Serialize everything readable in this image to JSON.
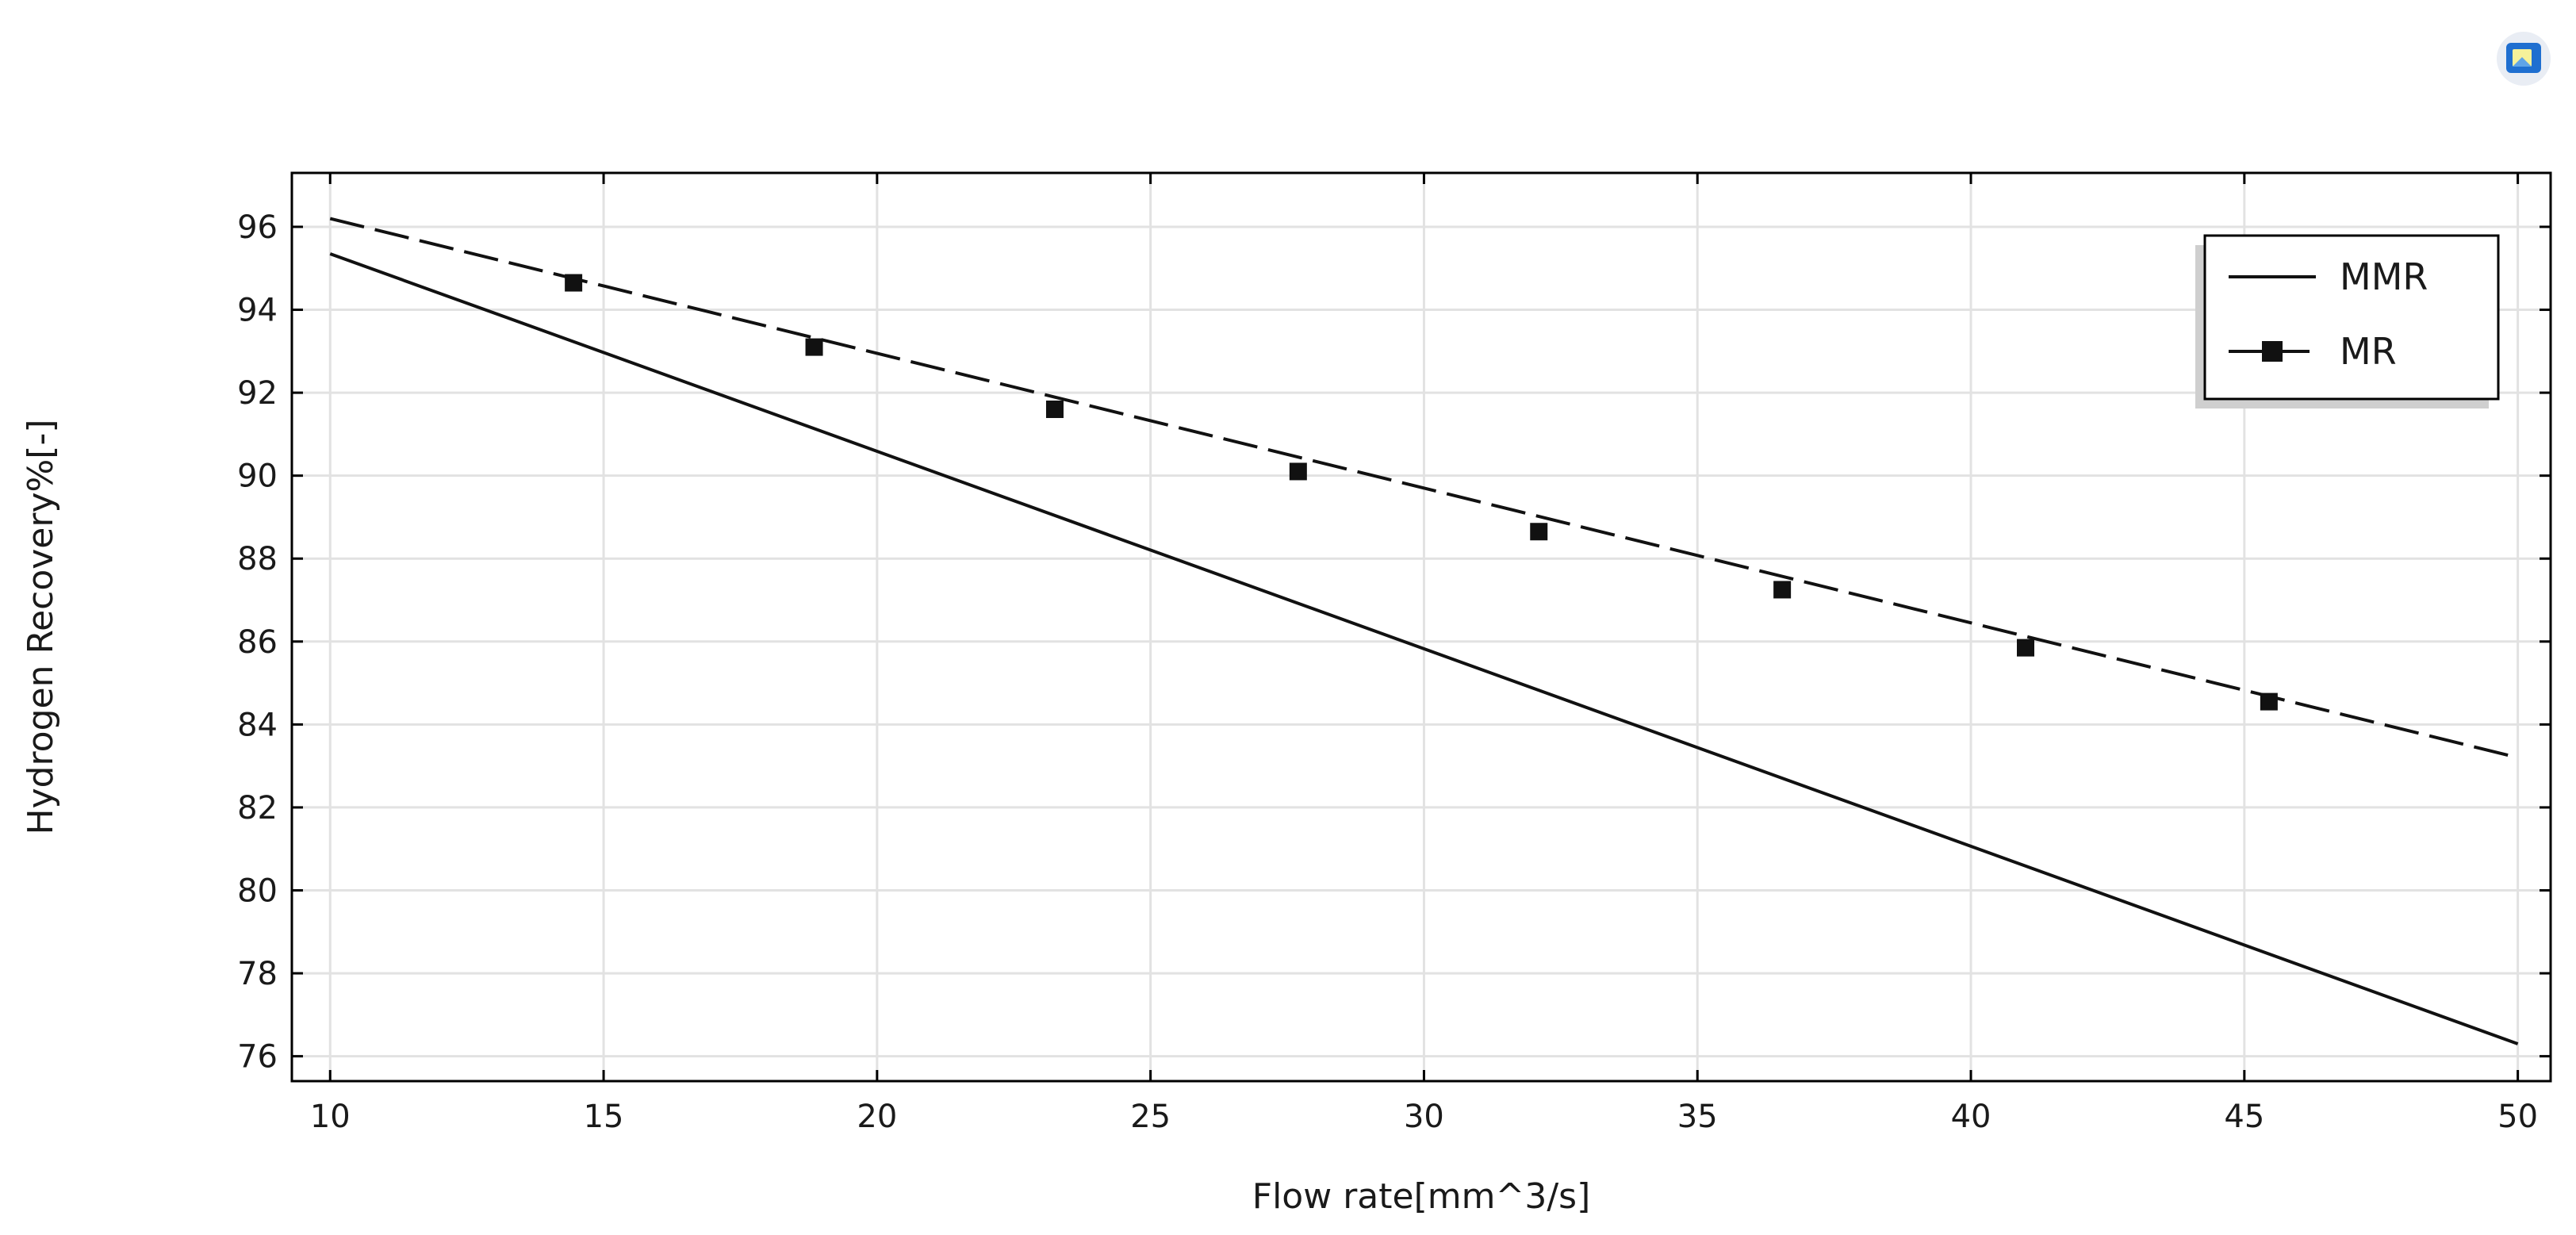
{
  "toolbar": {
    "icon": "image-export-icon",
    "icon_color": "#1f6fd0"
  },
  "colors": {
    "series_line": "#111111",
    "grid": "#e2e2e2",
    "axes_frame": "#000000",
    "legend_shadow": "#cfcfcf",
    "background": "#ffffff"
  },
  "chart_data": {
    "type": "line",
    "title": "",
    "xlabel": "Flow rate[mm^3/s]",
    "ylabel": "Hydrogen Recovery%[-]",
    "xlim": [
      9.3,
      50.6
    ],
    "ylim": [
      75.4,
      97.3
    ],
    "xticks": [
      10,
      15,
      20,
      25,
      30,
      35,
      40,
      45,
      50
    ],
    "yticks": [
      76,
      78,
      80,
      82,
      84,
      86,
      88,
      90,
      92,
      94,
      96
    ],
    "grid": true,
    "legend": {
      "position": "top-right",
      "entries": [
        "MMR",
        "MR"
      ]
    },
    "series": [
      {
        "name": "MMR",
        "style": "solid",
        "marker": "none",
        "x": [
          10,
          50
        ],
        "y": [
          95.35,
          76.3
        ]
      },
      {
        "name": "MR",
        "style": "dashed",
        "marker": "square",
        "x": [
          10,
          50
        ],
        "y": [
          96.2,
          83.2
        ],
        "marker_x": [
          14.45,
          18.85,
          23.25,
          27.7,
          32.1,
          36.55,
          41.0,
          45.45
        ],
        "marker_y": [
          94.65,
          93.1,
          91.6,
          90.1,
          88.65,
          87.25,
          85.85,
          84.55
        ]
      }
    ]
  }
}
